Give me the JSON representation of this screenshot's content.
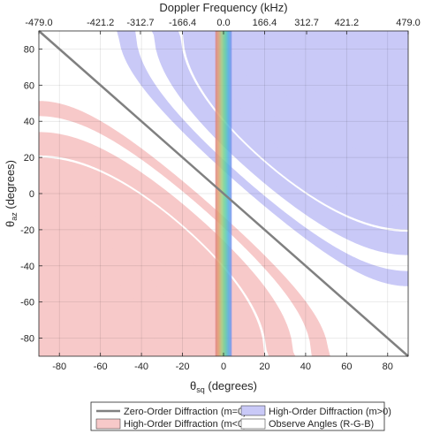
{
  "chart_data": {
    "type": "area",
    "top_axis_label": "Doppler Frequency (kHz)",
    "top_tick_labels": [
      "-479.0",
      "-421.2",
      "-312.7",
      "-166.4",
      "0.0",
      "166.4",
      "312.7",
      "421.2",
      "479.0"
    ],
    "top_tick_angles_deg": [
      -90,
      -60,
      -40.5,
      -20,
      0,
      20,
      40.5,
      60,
      90
    ],
    "xlabel": "θsq (degrees)",
    "ylabel": "θaz (degrees)",
    "xlim": [
      -90,
      90
    ],
    "ylim": [
      -90,
      90
    ],
    "x_ticks": [
      -80,
      -60,
      -40,
      -20,
      0,
      20,
      40,
      60,
      80
    ],
    "y_ticks": [
      -80,
      -60,
      -40,
      -20,
      0,
      20,
      40,
      60,
      80
    ],
    "grid": true,
    "series": [
      {
        "name": "Zero-Order Diffraction (m=0)",
        "kind": "line",
        "color": "#808080",
        "x": [
          -90,
          90
        ],
        "y": [
          90,
          -90
        ]
      },
      {
        "name": "High-Order Diffraction (m>0)",
        "kind": "band",
        "color": "#c9c9f7",
        "orders": [
          1,
          2,
          3,
          4,
          5,
          6,
          7
        ]
      },
      {
        "name": "High-Order Diffraction (m<0)",
        "kind": "band",
        "color": "#f7c9c9",
        "orders": [
          -1,
          -2,
          -3,
          -4,
          -5,
          -6,
          -7
        ]
      },
      {
        "name": "Observe Angles (R-G-B)",
        "kind": "vertical-gradient-band",
        "color": "#ffffff",
        "x_range": [
          -4,
          4
        ],
        "gradient": [
          "#e08080",
          "#e0a070",
          "#a0d080",
          "#60d0a0",
          "#50b0e0",
          "#8090f0"
        ]
      }
    ],
    "band_model": {
      "relation": "sin(θaz) = -sin(θsq) + m·d",
      "d_lower": 0.22,
      "d_upper": 0.32
    },
    "legend": {
      "placement": "bottom-outside",
      "entries": [
        {
          "label": "Zero-Order Diffraction (m=0)",
          "symbol": "line",
          "color": "#808080"
        },
        {
          "label": "High-Order Diffraction (m>0)",
          "symbol": "patch",
          "color": "#c9c9f7"
        },
        {
          "label": "High-Order Diffraction (m<0)",
          "symbol": "patch",
          "color": "#f7c9c9"
        },
        {
          "label": "Observe Angles (R-G-B)",
          "symbol": "patch",
          "color": "#ffffff"
        }
      ]
    }
  }
}
